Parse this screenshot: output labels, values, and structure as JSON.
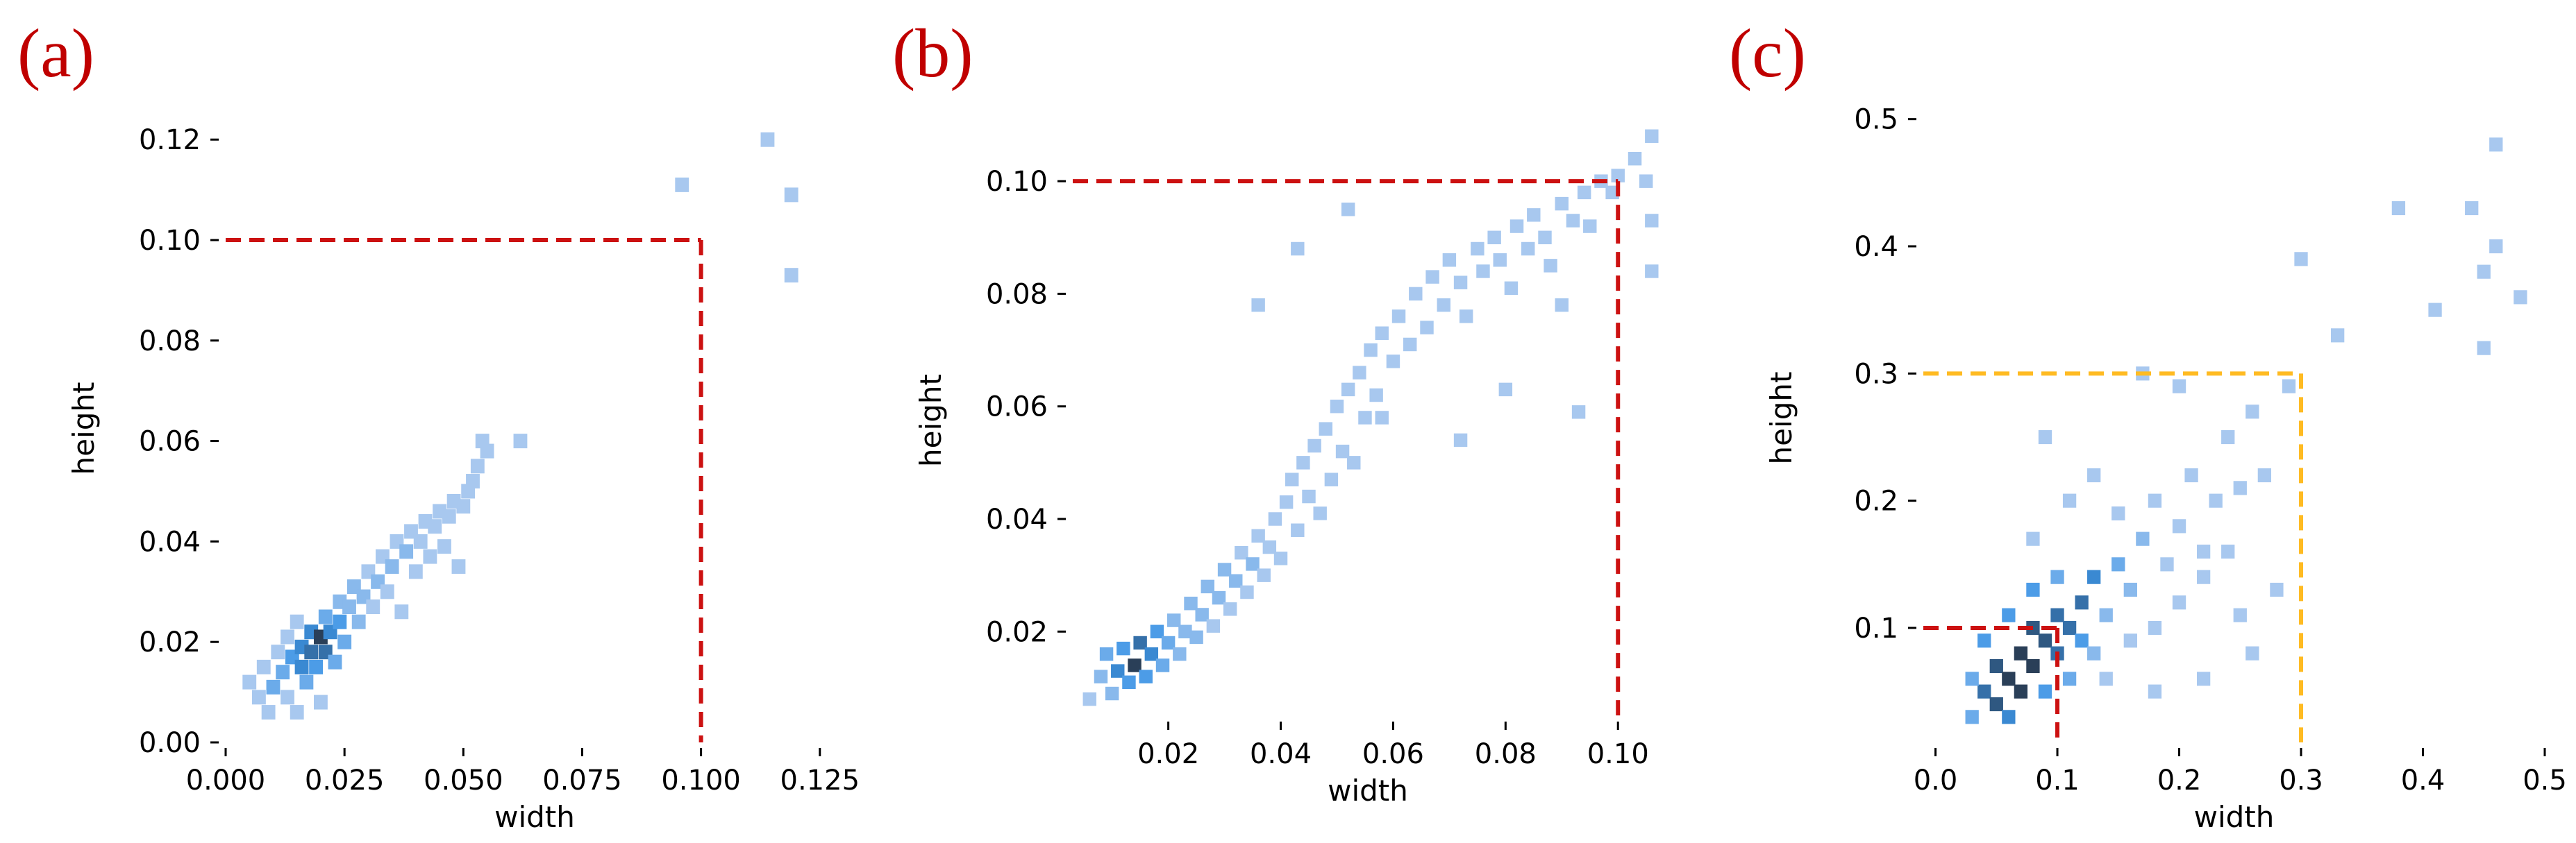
{
  "figure": {
    "panels": [
      "(a)",
      "(b)",
      "(c)"
    ]
  },
  "colors": {
    "cell_light": "#a8c8ef",
    "cell_mid": "#3d95e6",
    "cell_dark": "#2a3f58",
    "guide_red": "#cc1111",
    "guide_yellow": "#ffbb22",
    "panel_letter": "#c00000"
  },
  "chart_data": [
    {
      "type": "heatmap",
      "panel": "(a)",
      "xlabel": "width",
      "ylabel": "height",
      "xlim": [
        0.0,
        0.13
      ],
      "ylim": [
        0.0,
        0.125
      ],
      "xticks": [
        0.0,
        0.025,
        0.05,
        0.075,
        0.1,
        0.125
      ],
      "xtick_labels": [
        "0.000",
        "0.025",
        "0.050",
        "0.075",
        "0.100",
        "0.125"
      ],
      "yticks": [
        0.0,
        0.02,
        0.04,
        0.06,
        0.08,
        0.1,
        0.12
      ],
      "ytick_labels": [
        "0.00",
        "0.02",
        "0.04",
        "0.06",
        "0.08",
        "0.10",
        "0.12"
      ],
      "grid": false,
      "bin_width": [
        0.0029,
        0.0029
      ],
      "guides": [
        {
          "color": "red",
          "style": "dashed",
          "x": 0.1,
          "y": 0.1
        }
      ],
      "cells": [
        [
          0.005,
          0.012,
          0.3
        ],
        [
          0.007,
          0.009,
          0.3
        ],
        [
          0.008,
          0.015,
          0.3
        ],
        [
          0.009,
          0.006,
          0.3
        ],
        [
          0.01,
          0.011,
          0.5
        ],
        [
          0.011,
          0.018,
          0.3
        ],
        [
          0.012,
          0.014,
          0.5
        ],
        [
          0.013,
          0.021,
          0.3
        ],
        [
          0.013,
          0.009,
          0.3
        ],
        [
          0.014,
          0.017,
          0.6
        ],
        [
          0.015,
          0.006,
          0.3
        ],
        [
          0.015,
          0.024,
          0.3
        ],
        [
          0.016,
          0.015,
          0.7
        ],
        [
          0.016,
          0.019,
          0.7
        ],
        [
          0.017,
          0.012,
          0.5
        ],
        [
          0.018,
          0.018,
          0.8
        ],
        [
          0.018,
          0.022,
          0.7
        ],
        [
          0.019,
          0.015,
          0.6
        ],
        [
          0.02,
          0.021,
          1.0
        ],
        [
          0.02,
          0.008,
          0.3
        ],
        [
          0.021,
          0.018,
          0.8
        ],
        [
          0.021,
          0.025,
          0.5
        ],
        [
          0.022,
          0.022,
          0.7
        ],
        [
          0.023,
          0.016,
          0.5
        ],
        [
          0.024,
          0.024,
          0.6
        ],
        [
          0.024,
          0.028,
          0.4
        ],
        [
          0.025,
          0.02,
          0.5
        ],
        [
          0.026,
          0.027,
          0.4
        ],
        [
          0.027,
          0.031,
          0.4
        ],
        [
          0.028,
          0.024,
          0.4
        ],
        [
          0.029,
          0.029,
          0.4
        ],
        [
          0.03,
          0.034,
          0.3
        ],
        [
          0.031,
          0.027,
          0.3
        ],
        [
          0.032,
          0.032,
          0.4
        ],
        [
          0.033,
          0.037,
          0.3
        ],
        [
          0.034,
          0.03,
          0.3
        ],
        [
          0.035,
          0.035,
          0.4
        ],
        [
          0.036,
          0.04,
          0.3
        ],
        [
          0.037,
          0.026,
          0.3
        ],
        [
          0.038,
          0.038,
          0.4
        ],
        [
          0.039,
          0.042,
          0.3
        ],
        [
          0.04,
          0.034,
          0.3
        ],
        [
          0.041,
          0.04,
          0.3
        ],
        [
          0.042,
          0.044,
          0.3
        ],
        [
          0.043,
          0.037,
          0.3
        ],
        [
          0.044,
          0.043,
          0.3
        ],
        [
          0.045,
          0.046,
          0.3
        ],
        [
          0.046,
          0.039,
          0.3
        ],
        [
          0.047,
          0.045,
          0.3
        ],
        [
          0.048,
          0.048,
          0.3
        ],
        [
          0.049,
          0.035,
          0.3
        ],
        [
          0.05,
          0.047,
          0.3
        ],
        [
          0.051,
          0.05,
          0.3
        ],
        [
          0.052,
          0.052,
          0.3
        ],
        [
          0.053,
          0.055,
          0.3
        ],
        [
          0.055,
          0.058,
          0.3
        ],
        [
          0.054,
          0.06,
          0.3
        ],
        [
          0.062,
          0.06,
          0.3
        ],
        [
          0.096,
          0.111,
          0.3
        ],
        [
          0.114,
          0.12,
          0.3
        ],
        [
          0.119,
          0.109,
          0.3
        ],
        [
          0.119,
          0.093,
          0.3
        ]
      ]
    },
    {
      "type": "heatmap",
      "panel": "(b)",
      "xlabel": "width",
      "ylabel": "height",
      "xlim": [
        0.003,
        0.108
      ],
      "ylim": [
        0.005,
        0.11
      ],
      "xticks": [
        0.02,
        0.04,
        0.06,
        0.08,
        0.1
      ],
      "xtick_labels": [
        "0.02",
        "0.04",
        "0.06",
        "0.08",
        "0.10"
      ],
      "yticks": [
        0.02,
        0.04,
        0.06,
        0.08,
        0.1
      ],
      "ytick_labels": [
        "0.02",
        "0.04",
        "0.06",
        "0.08",
        "0.10"
      ],
      "grid": false,
      "bin_width": [
        0.0024,
        0.0024
      ],
      "guides": [
        {
          "color": "red",
          "style": "dashed",
          "x": 0.1,
          "y": 0.1
        }
      ],
      "cells": [
        [
          0.006,
          0.008,
          0.3
        ],
        [
          0.008,
          0.012,
          0.4
        ],
        [
          0.009,
          0.016,
          0.5
        ],
        [
          0.01,
          0.009,
          0.4
        ],
        [
          0.011,
          0.013,
          0.7
        ],
        [
          0.012,
          0.017,
          0.6
        ],
        [
          0.013,
          0.011,
          0.6
        ],
        [
          0.014,
          0.014,
          1.0
        ],
        [
          0.015,
          0.018,
          0.8
        ],
        [
          0.016,
          0.012,
          0.6
        ],
        [
          0.017,
          0.016,
          0.7
        ],
        [
          0.018,
          0.02,
          0.6
        ],
        [
          0.019,
          0.014,
          0.5
        ],
        [
          0.02,
          0.018,
          0.5
        ],
        [
          0.021,
          0.022,
          0.4
        ],
        [
          0.022,
          0.016,
          0.4
        ],
        [
          0.023,
          0.02,
          0.4
        ],
        [
          0.024,
          0.025,
          0.4
        ],
        [
          0.025,
          0.019,
          0.4
        ],
        [
          0.026,
          0.023,
          0.4
        ],
        [
          0.027,
          0.028,
          0.4
        ],
        [
          0.028,
          0.021,
          0.3
        ],
        [
          0.029,
          0.026,
          0.4
        ],
        [
          0.03,
          0.031,
          0.4
        ],
        [
          0.031,
          0.024,
          0.3
        ],
        [
          0.032,
          0.029,
          0.4
        ],
        [
          0.033,
          0.034,
          0.3
        ],
        [
          0.034,
          0.027,
          0.3
        ],
        [
          0.035,
          0.032,
          0.4
        ],
        [
          0.036,
          0.037,
          0.3
        ],
        [
          0.037,
          0.03,
          0.3
        ],
        [
          0.038,
          0.035,
          0.3
        ],
        [
          0.039,
          0.04,
          0.3
        ],
        [
          0.04,
          0.033,
          0.3
        ],
        [
          0.041,
          0.043,
          0.3
        ],
        [
          0.042,
          0.047,
          0.3
        ],
        [
          0.043,
          0.038,
          0.3
        ],
        [
          0.044,
          0.05,
          0.3
        ],
        [
          0.045,
          0.044,
          0.3
        ],
        [
          0.046,
          0.053,
          0.3
        ],
        [
          0.047,
          0.041,
          0.3
        ],
        [
          0.048,
          0.056,
          0.3
        ],
        [
          0.049,
          0.047,
          0.3
        ],
        [
          0.05,
          0.06,
          0.3
        ],
        [
          0.051,
          0.052,
          0.3
        ],
        [
          0.052,
          0.063,
          0.3
        ],
        [
          0.053,
          0.05,
          0.3
        ],
        [
          0.054,
          0.066,
          0.3
        ],
        [
          0.055,
          0.058,
          0.3
        ],
        [
          0.056,
          0.07,
          0.3
        ],
        [
          0.057,
          0.062,
          0.3
        ],
        [
          0.058,
          0.073,
          0.3
        ],
        [
          0.06,
          0.068,
          0.3
        ],
        [
          0.061,
          0.076,
          0.3
        ],
        [
          0.063,
          0.071,
          0.3
        ],
        [
          0.064,
          0.08,
          0.3
        ],
        [
          0.066,
          0.074,
          0.3
        ],
        [
          0.067,
          0.083,
          0.3
        ],
        [
          0.069,
          0.078,
          0.3
        ],
        [
          0.07,
          0.086,
          0.3
        ],
        [
          0.072,
          0.082,
          0.3
        ],
        [
          0.073,
          0.076,
          0.3
        ],
        [
          0.075,
          0.088,
          0.3
        ],
        [
          0.076,
          0.084,
          0.3
        ],
        [
          0.078,
          0.09,
          0.3
        ],
        [
          0.079,
          0.086,
          0.3
        ],
        [
          0.081,
          0.081,
          0.3
        ],
        [
          0.082,
          0.092,
          0.3
        ],
        [
          0.084,
          0.088,
          0.3
        ],
        [
          0.085,
          0.094,
          0.3
        ],
        [
          0.087,
          0.09,
          0.3
        ],
        [
          0.088,
          0.085,
          0.3
        ],
        [
          0.09,
          0.096,
          0.3
        ],
        [
          0.092,
          0.093,
          0.3
        ],
        [
          0.094,
          0.098,
          0.3
        ],
        [
          0.095,
          0.092,
          0.3
        ],
        [
          0.097,
          0.1,
          0.3
        ],
        [
          0.099,
          0.098,
          0.3
        ],
        [
          0.1,
          0.101,
          0.3
        ],
        [
          0.103,
          0.104,
          0.3
        ],
        [
          0.105,
          0.1,
          0.3
        ],
        [
          0.106,
          0.108,
          0.3
        ],
        [
          0.106,
          0.093,
          0.3
        ],
        [
          0.106,
          0.084,
          0.3
        ],
        [
          0.036,
          0.078,
          0.3
        ],
        [
          0.043,
          0.088,
          0.3
        ],
        [
          0.052,
          0.095,
          0.3
        ],
        [
          0.072,
          0.054,
          0.3
        ],
        [
          0.08,
          0.063,
          0.3
        ],
        [
          0.093,
          0.059,
          0.3
        ],
        [
          0.09,
          0.078,
          0.3
        ],
        [
          0.058,
          0.058,
          0.3
        ]
      ]
    },
    {
      "type": "heatmap",
      "panel": "(c)",
      "xlabel": "width",
      "ylabel": "height",
      "xlim": [
        -0.01,
        0.5
      ],
      "ylim": [
        0.01,
        0.52
      ],
      "xticks": [
        0.0,
        0.1,
        0.2,
        0.3,
        0.4,
        0.5
      ],
      "xtick_labels": [
        "0.0",
        "0.1",
        "0.2",
        "0.3",
        "0.4",
        "0.5"
      ],
      "yticks": [
        0.1,
        0.2,
        0.3,
        0.4,
        0.5
      ],
      "ytick_labels": [
        "0.1",
        "0.2",
        "0.3",
        "0.4",
        "0.5"
      ],
      "grid": false,
      "bin_width": [
        0.011,
        0.011
      ],
      "guides": [
        {
          "color": "red",
          "style": "dashed",
          "x": 0.1,
          "y": 0.1
        },
        {
          "color": "yellow",
          "style": "dashed",
          "x": 0.3,
          "y": 0.3
        }
      ],
      "cells": [
        [
          0.03,
          0.03,
          0.5
        ],
        [
          0.04,
          0.05,
          0.8
        ],
        [
          0.05,
          0.04,
          0.9
        ],
        [
          0.05,
          0.07,
          0.9
        ],
        [
          0.06,
          0.06,
          1.0
        ],
        [
          0.07,
          0.05,
          1.0
        ],
        [
          0.07,
          0.08,
          1.0
        ],
        [
          0.08,
          0.07,
          1.0
        ],
        [
          0.08,
          0.1,
          0.9
        ],
        [
          0.09,
          0.09,
          0.9
        ],
        [
          0.1,
          0.08,
          0.8
        ],
        [
          0.1,
          0.11,
          0.8
        ],
        [
          0.11,
          0.1,
          0.8
        ],
        [
          0.12,
          0.12,
          0.8
        ],
        [
          0.12,
          0.09,
          0.6
        ],
        [
          0.13,
          0.14,
          0.7
        ],
        [
          0.03,
          0.06,
          0.5
        ],
        [
          0.04,
          0.09,
          0.6
        ],
        [
          0.06,
          0.11,
          0.6
        ],
        [
          0.08,
          0.13,
          0.6
        ],
        [
          0.1,
          0.14,
          0.5
        ],
        [
          0.06,
          0.03,
          0.7
        ],
        [
          0.09,
          0.05,
          0.6
        ],
        [
          0.11,
          0.06,
          0.5
        ],
        [
          0.13,
          0.08,
          0.4
        ],
        [
          0.14,
          0.11,
          0.4
        ],
        [
          0.15,
          0.15,
          0.5
        ],
        [
          0.16,
          0.13,
          0.4
        ],
        [
          0.17,
          0.17,
          0.4
        ],
        [
          0.15,
          0.19,
          0.3
        ],
        [
          0.18,
          0.2,
          0.3
        ],
        [
          0.19,
          0.15,
          0.3
        ],
        [
          0.2,
          0.18,
          0.3
        ],
        [
          0.21,
          0.22,
          0.3
        ],
        [
          0.22,
          0.16,
          0.3
        ],
        [
          0.23,
          0.2,
          0.3
        ],
        [
          0.24,
          0.25,
          0.3
        ],
        [
          0.25,
          0.21,
          0.3
        ],
        [
          0.26,
          0.27,
          0.3
        ],
        [
          0.27,
          0.22,
          0.3
        ],
        [
          0.14,
          0.06,
          0.3
        ],
        [
          0.16,
          0.09,
          0.3
        ],
        [
          0.18,
          0.1,
          0.3
        ],
        [
          0.2,
          0.12,
          0.3
        ],
        [
          0.22,
          0.14,
          0.3
        ],
        [
          0.24,
          0.16,
          0.3
        ],
        [
          0.08,
          0.17,
          0.3
        ],
        [
          0.11,
          0.2,
          0.3
        ],
        [
          0.13,
          0.22,
          0.3
        ],
        [
          0.09,
          0.25,
          0.3
        ],
        [
          0.17,
          0.3,
          0.3
        ],
        [
          0.2,
          0.29,
          0.3
        ],
        [
          0.29,
          0.29,
          0.3
        ],
        [
          0.3,
          0.39,
          0.3
        ],
        [
          0.33,
          0.33,
          0.3
        ],
        [
          0.38,
          0.43,
          0.3
        ],
        [
          0.41,
          0.35,
          0.3
        ],
        [
          0.44,
          0.43,
          0.3
        ],
        [
          0.45,
          0.32,
          0.3
        ],
        [
          0.46,
          0.4,
          0.3
        ],
        [
          0.46,
          0.48,
          0.3
        ],
        [
          0.45,
          0.38,
          0.3
        ],
        [
          0.48,
          0.36,
          0.3
        ],
        [
          0.25,
          0.11,
          0.3
        ],
        [
          0.28,
          0.13,
          0.3
        ],
        [
          0.26,
          0.08,
          0.3
        ],
        [
          0.22,
          0.06,
          0.3
        ],
        [
          0.18,
          0.05,
          0.3
        ]
      ]
    }
  ]
}
